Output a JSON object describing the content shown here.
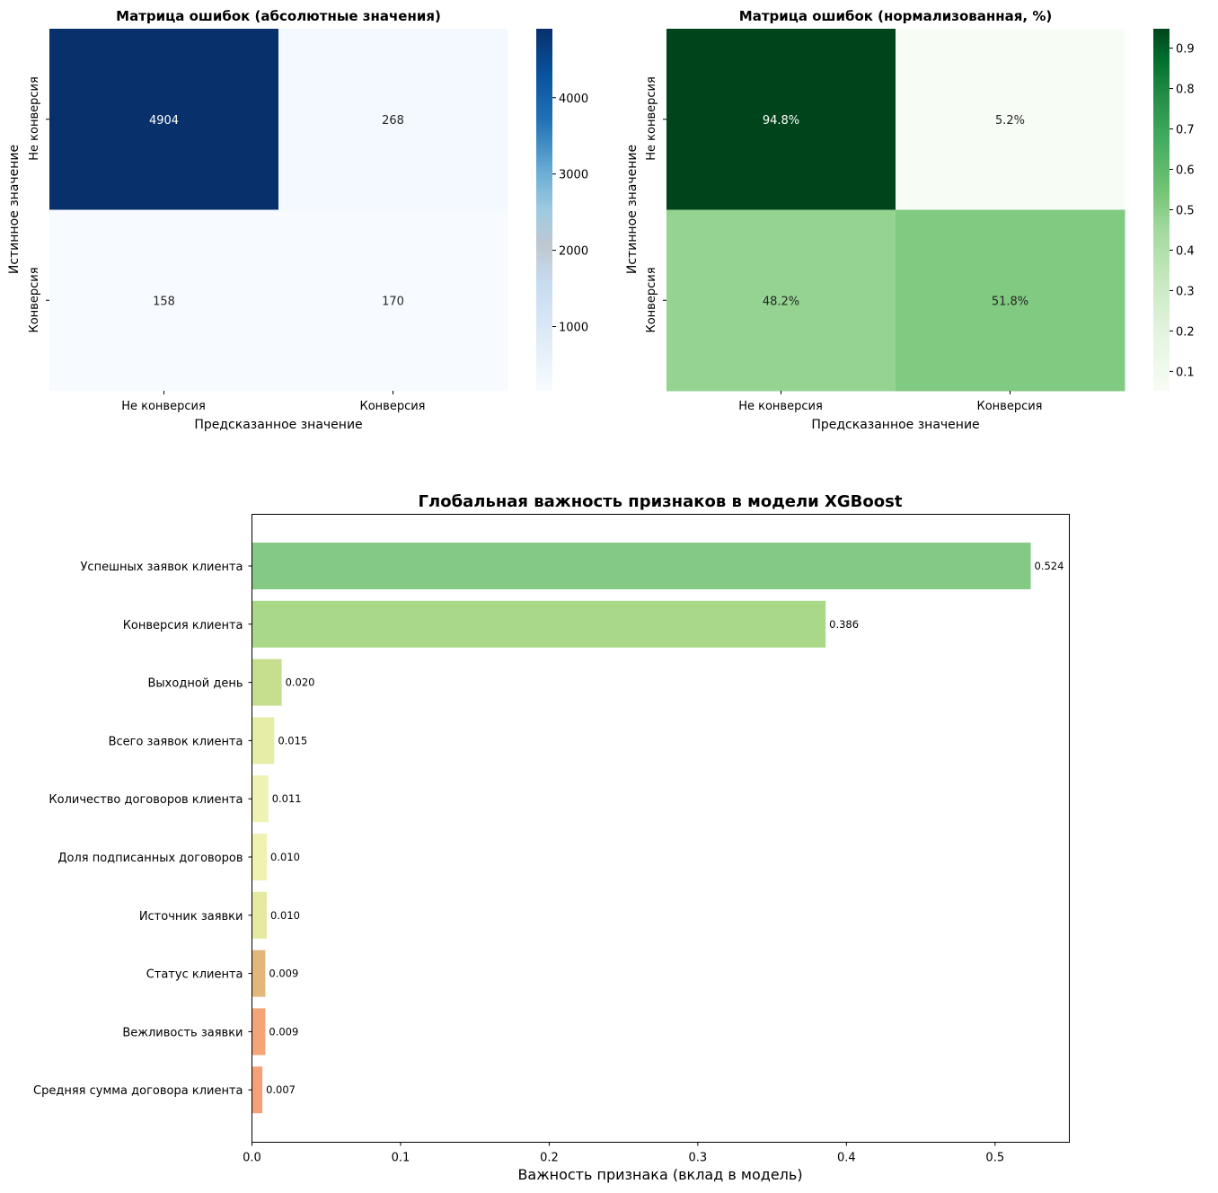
{
  "chart_data": [
    {
      "type": "heatmap",
      "title": "Матрица ошибок (абсолютные значения)",
      "xlabel": "Предсказанное значение",
      "ylabel": "Истинное значение",
      "x_categories": [
        "Не конверсия",
        "Конверсия"
      ],
      "y_categories": [
        "Не конверсия",
        "Конверсия"
      ],
      "values": [
        [
          4904,
          268
        ],
        [
          158,
          170
        ]
      ],
      "annotations": [
        [
          "4904",
          "268"
        ],
        [
          "158",
          "170"
        ]
      ],
      "colormap": "Blues",
      "colorbar": {
        "range": [
          158,
          4904
        ],
        "ticks": [
          1000,
          2000,
          3000,
          4000
        ],
        "tick_labels": [
          "1000",
          "2000",
          "3000",
          "4000"
        ]
      }
    },
    {
      "type": "heatmap",
      "title": "Матрица ошибок (нормализованная, %)",
      "xlabel": "Предсказанное значение",
      "ylabel": "Истинное значение",
      "x_categories": [
        "Не конверсия",
        "Конверсия"
      ],
      "y_categories": [
        "Не конверсия",
        "Конверсия"
      ],
      "values": [
        [
          0.948,
          0.052
        ],
        [
          0.482,
          0.518
        ]
      ],
      "annotations": [
        [
          "94.8%",
          "5.2%"
        ],
        [
          "48.2%",
          "51.8%"
        ]
      ],
      "colormap": "Greens",
      "colorbar": {
        "range": [
          0.052,
          0.948
        ],
        "ticks": [
          0.1,
          0.2,
          0.3,
          0.4,
          0.5,
          0.6,
          0.7,
          0.8,
          0.9
        ],
        "tick_labels": [
          "0.1",
          "0.2",
          "0.3",
          "0.4",
          "0.5",
          "0.6",
          "0.7",
          "0.8",
          "0.9"
        ]
      }
    },
    {
      "type": "bar",
      "orientation": "horizontal",
      "title": "Глобальная важность признаков в модели XGBoost",
      "xlabel": "Важность признака (вклад в модель)",
      "ylabel": "",
      "xlim": [
        0,
        0.55
      ],
      "x_ticks": [
        0.0,
        0.1,
        0.2,
        0.3,
        0.4,
        0.5
      ],
      "x_tick_labels": [
        "0.0",
        "0.1",
        "0.2",
        "0.3",
        "0.4",
        "0.5"
      ],
      "grid": false,
      "categories": [
        "Успешных заявок клиента",
        "Конверсия клиента",
        "Выходной день",
        "Всего заявок клиента",
        "Количество договоров клиента",
        "Доля подписанных договоров",
        "Источник заявки",
        "Статус клиента",
        "Вежливость заявки",
        "Средняя сумма договора клиента"
      ],
      "values": [
        0.524,
        0.386,
        0.02,
        0.015,
        0.011,
        0.01,
        0.01,
        0.009,
        0.009,
        0.007
      ],
      "value_labels": [
        "0.524",
        "0.386",
        "0.020",
        "0.015",
        "0.011",
        "0.010",
        "0.010",
        "0.009",
        "0.009",
        "0.007"
      ],
      "bar_colors": [
        "#84c984",
        "#a8d888",
        "#c6df8f",
        "#e6eda6",
        "#eef2b2",
        "#eff2b0",
        "#e5eaa0",
        "#e3b67a",
        "#f4a477",
        "#f6a078"
      ]
    }
  ]
}
